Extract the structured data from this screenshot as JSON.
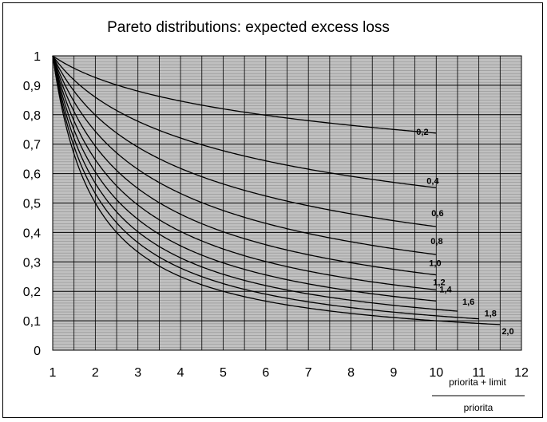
{
  "chart_data": {
    "type": "line",
    "title": "Pareto distributions: expected excess loss",
    "xlabel_numerator": "priorita + limit",
    "xlabel_denominator": "priorita",
    "ylabel": "",
    "xlim": [
      1,
      12
    ],
    "ylim": [
      0,
      1
    ],
    "grid": true,
    "xticks": [
      "1",
      "2",
      "3",
      "4",
      "5",
      "6",
      "7",
      "8",
      "9",
      "10",
      "11",
      "12"
    ],
    "yticks": [
      "0",
      "0,1",
      "0,2",
      "0,3",
      "0,4",
      "0,5",
      "0,6",
      "0,7",
      "0,8",
      "0,9",
      "1"
    ],
    "series": [
      {
        "name": "0,2",
        "alpha": 0.2,
        "x_end": 10,
        "end_value": 0.74
      },
      {
        "name": "0,4",
        "alpha": 0.4,
        "x_end": 10,
        "end_value": 0.55
      },
      {
        "name": "0,6",
        "alpha": 0.6,
        "x_end": 10,
        "end_value": 0.42
      },
      {
        "name": "0,8",
        "alpha": 0.8,
        "x_end": 10,
        "end_value": 0.33
      },
      {
        "name": "1,0",
        "alpha": 1.0,
        "x_end": 10,
        "end_value": 0.25
      },
      {
        "name": "1,2",
        "alpha": 1.2,
        "x_end": 10,
        "end_value": 0.21
      },
      {
        "name": "1,4",
        "alpha": 1.4,
        "x_end": 10,
        "end_value": 0.17
      },
      {
        "name": "1,6",
        "alpha": 1.6,
        "x_end": 10.5,
        "end_value": 0.14
      },
      {
        "name": "1,8",
        "alpha": 1.8,
        "x_end": 11,
        "end_value": 0.11
      },
      {
        "name": "2,0",
        "alpha": 2.0,
        "x_end": 11.5,
        "end_value": 0.09
      }
    ]
  }
}
